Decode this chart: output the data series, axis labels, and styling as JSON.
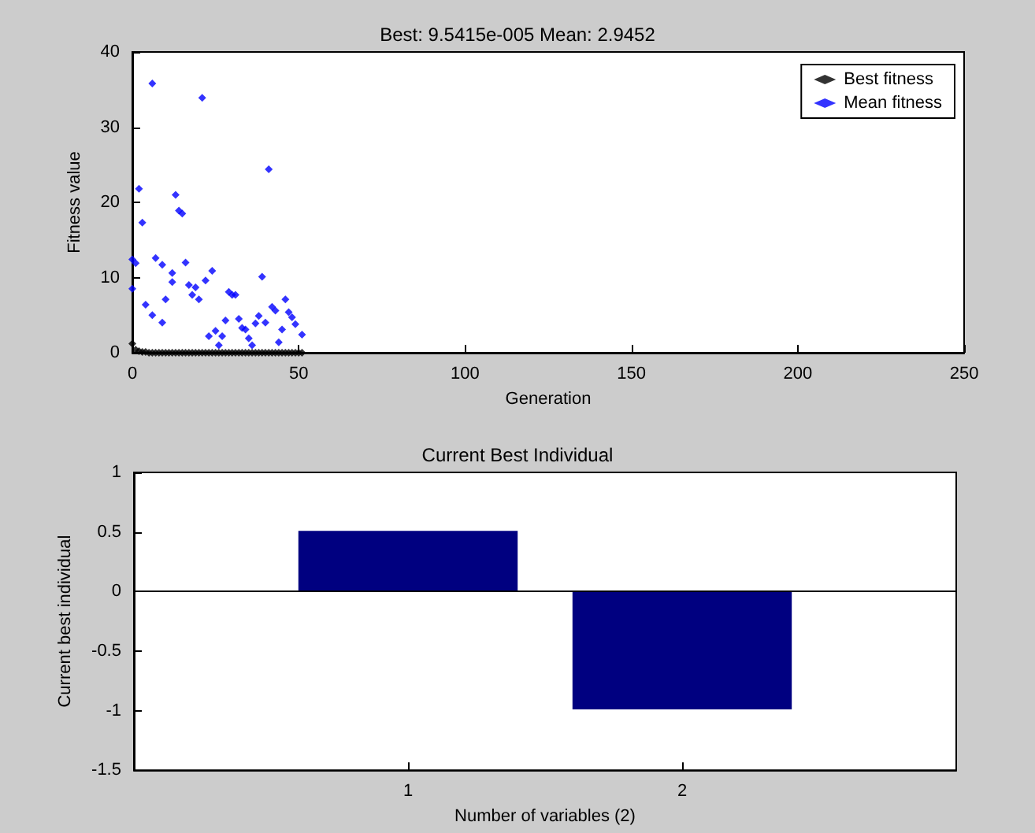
{
  "chart_data": [
    {
      "type": "scatter",
      "title": "Best: 9.5415e-005 Mean: 2.9452",
      "xlabel": "Generation",
      "ylabel": "Fitness value",
      "xlim": [
        0,
        250
      ],
      "xticks": [
        0,
        50,
        100,
        150,
        200,
        250
      ],
      "ylim": [
        0,
        40
      ],
      "yticks": [
        0,
        10,
        20,
        30,
        40
      ],
      "grid": false,
      "legend": "top right",
      "marker": "diamond",
      "series": [
        {
          "name": "Best fitness",
          "color": "#000000",
          "x": [
            0,
            1,
            2,
            3,
            4,
            5,
            6,
            7,
            8,
            9,
            10,
            11,
            12,
            13,
            14,
            15,
            16,
            17,
            18,
            19,
            20,
            21,
            22,
            23,
            24,
            25,
            26,
            27,
            28,
            29,
            30,
            31,
            32,
            33,
            34,
            35,
            36,
            37,
            38,
            39,
            40,
            41,
            42,
            43,
            44,
            45,
            46,
            47,
            48,
            49,
            50,
            51
          ],
          "values": [
            1.2,
            0.4,
            0.2,
            0.1,
            0.1,
            0,
            0,
            0,
            0,
            0,
            0,
            0,
            0,
            0,
            0,
            0,
            0,
            0,
            0,
            0,
            0,
            0,
            0,
            0,
            0,
            0,
            0,
            0,
            0,
            0,
            0,
            0,
            0,
            0,
            0,
            0,
            0,
            0,
            0,
            0,
            0,
            0,
            0,
            0,
            0,
            0,
            0,
            0,
            0,
            0,
            0,
            0
          ]
        },
        {
          "name": "Mean fitness",
          "color": "#0000ff",
          "x": [
            6,
            21,
            41,
            2,
            13,
            14,
            15,
            3,
            0,
            1,
            7,
            9,
            16,
            12,
            24,
            12,
            39,
            0,
            17,
            19,
            22,
            18,
            20,
            29,
            30,
            31,
            4,
            6,
            10,
            9,
            46,
            42,
            43,
            38,
            47,
            48,
            45,
            49,
            51,
            28,
            32,
            33,
            34,
            37,
            40,
            23,
            25,
            26,
            27,
            35,
            36,
            44
          ],
          "values": [
            35.8,
            33.9,
            24.4,
            21.8,
            21.0,
            18.9,
            18.5,
            17.3,
            12.4,
            11.9,
            12.6,
            11.7,
            12.0,
            10.6,
            10.9,
            9.4,
            10.1,
            8.5,
            9.0,
            8.7,
            9.6,
            7.7,
            7.1,
            8.1,
            7.7,
            7.7,
            6.4,
            5.0,
            7.1,
            4.0,
            7.1,
            6.1,
            5.6,
            4.9,
            5.4,
            4.7,
            3.1,
            3.8,
            2.4,
            4.3,
            4.5,
            3.3,
            3.1,
            3.9,
            4.0,
            2.2,
            2.9,
            1.0,
            2.2,
            1.9,
            1.0,
            1.4
          ]
        }
      ]
    },
    {
      "type": "bar",
      "title": "Current Best Individual",
      "xlabel": "Number of variables (2)",
      "ylabel": "Current best individual",
      "x": [
        1,
        2
      ],
      "values": [
        0.51,
        -0.99
      ],
      "color": "#000080",
      "xlim": [
        0,
        3
      ],
      "xticks": [
        1,
        2
      ],
      "ylim": [
        -1.5,
        1
      ],
      "yticks": [
        -1.5,
        -1,
        -0.5,
        0,
        0.5,
        1
      ],
      "grid": false,
      "ref_lines": [
        {
          "axis": "y",
          "value": 0,
          "color": "#000000"
        }
      ]
    }
  ]
}
